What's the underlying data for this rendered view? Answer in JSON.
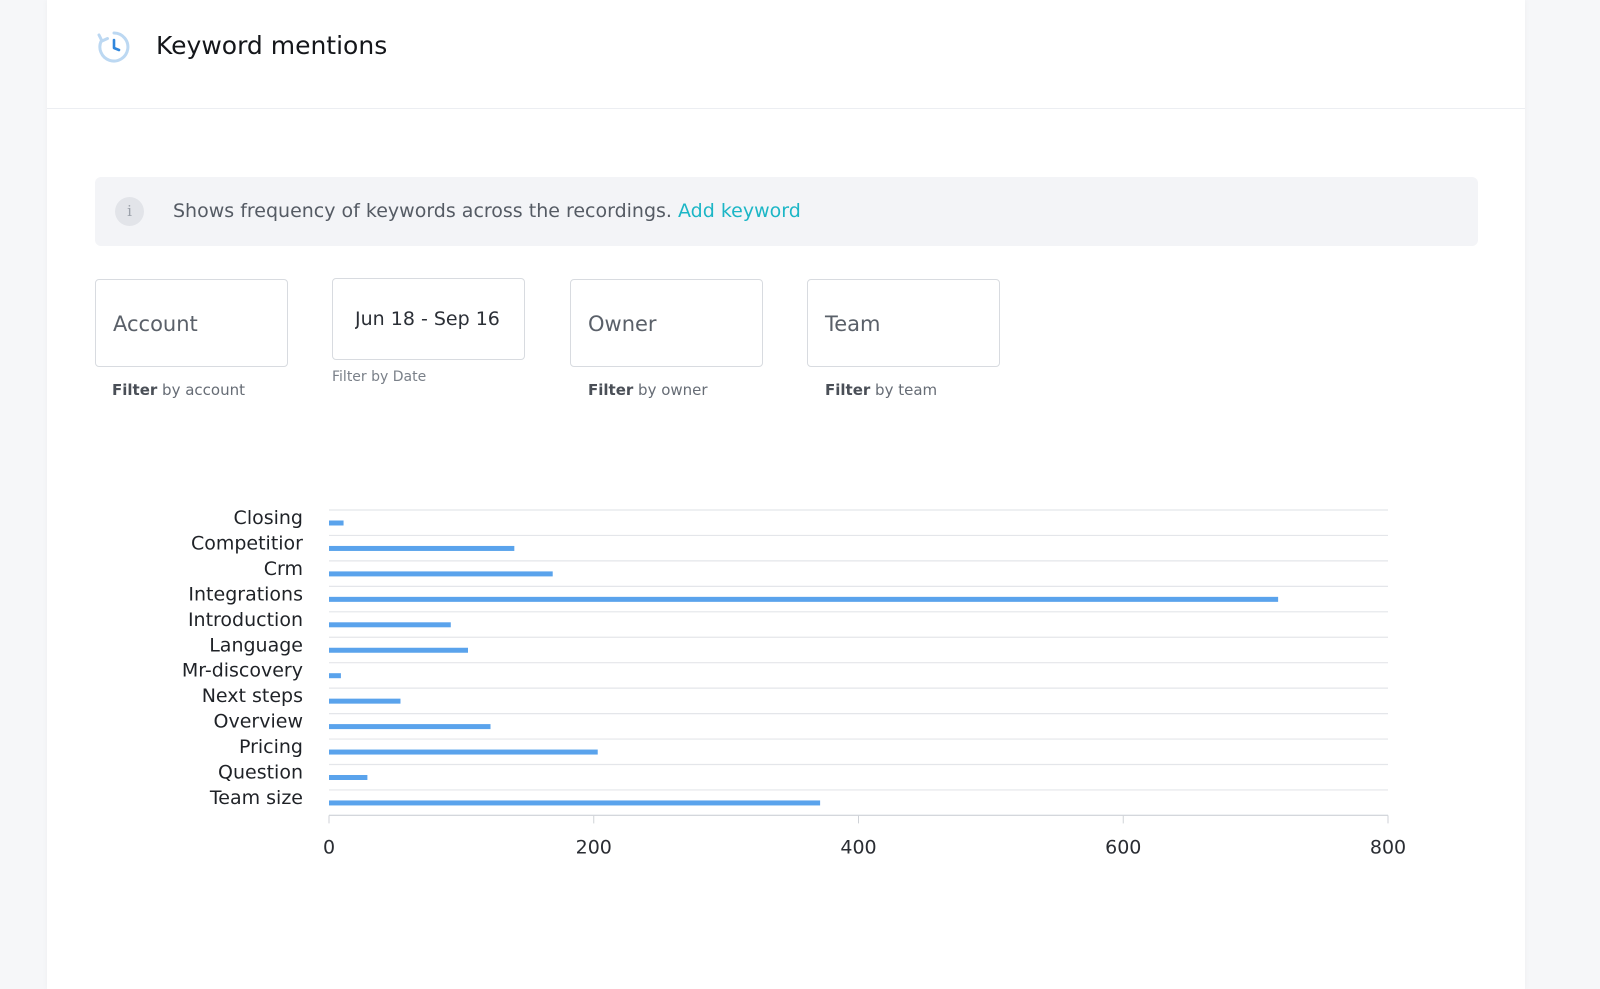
{
  "header": {
    "title": "Keyword mentions",
    "icon": "clock-history-icon"
  },
  "info": {
    "text": "Shows frequency of keywords across the recordings. ",
    "link": "Add keyword",
    "icon": "info-icon",
    "link_color": "#1cb6c6"
  },
  "filters": {
    "account": {
      "value": "Account",
      "hint_bold": "Filter",
      "hint_rest": " by account"
    },
    "date": {
      "value": "Jun 18  - Sep 16",
      "hint": "Filter by Date"
    },
    "owner": {
      "value": "Owner",
      "hint_bold": "Filter",
      "hint_rest": " by owner"
    },
    "team": {
      "value": "Team",
      "hint_bold": "Filter",
      "hint_rest": " by team"
    }
  },
  "chart_data": {
    "type": "bar",
    "orientation": "horizontal",
    "categories": [
      "Closing",
      "Competitior",
      "Crm",
      "Integrations",
      "Introduction",
      "Language",
      "Mr-discovery",
      "Next steps",
      "Overview",
      "Pricing",
      "Question",
      "Team size"
    ],
    "values": [
      11,
      140,
      169,
      717,
      92,
      105,
      9,
      54,
      122,
      203,
      29,
      371
    ],
    "xlim": [
      0,
      800
    ],
    "xticks": [
      0,
      200,
      400,
      600,
      800
    ],
    "bar_color": "#5aa3ec",
    "grid": true
  }
}
